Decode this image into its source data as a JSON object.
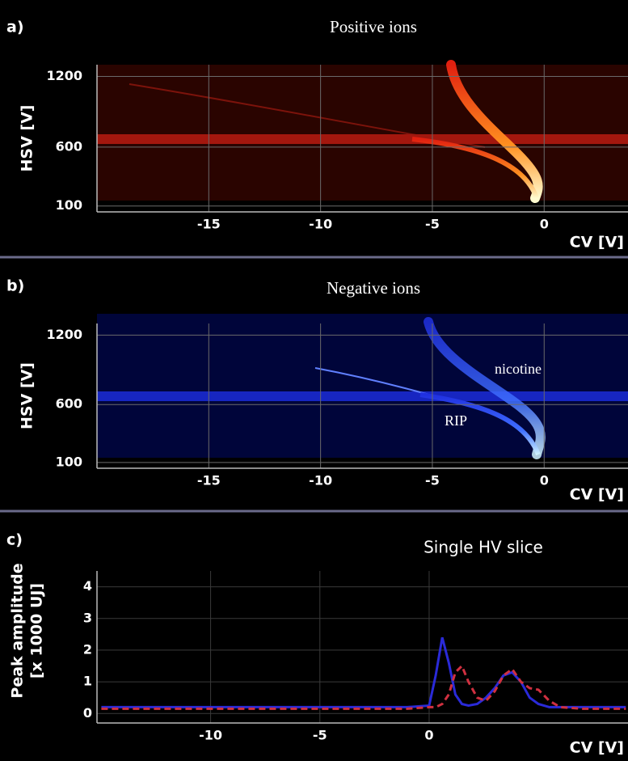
{
  "chart_data": [
    {
      "type": "heatmap",
      "panel_label": "a)",
      "title": "Positive ions",
      "ylabel": "HSV [V]",
      "xlabel": "CV [V]",
      "xlim": [
        -20,
        3.75
      ],
      "ylim": [
        50,
        1300
      ],
      "xticks": [
        -15,
        -10,
        -5,
        0
      ],
      "yticks": [
        100,
        600,
        1200
      ],
      "grid": true
    },
    {
      "type": "heatmap",
      "panel_label": "b)",
      "title": "Negative ions",
      "ylabel": "HSV [V]",
      "xlabel": "CV [V]",
      "xlim": [
        -20,
        3.75
      ],
      "ylim": [
        50,
        1300
      ],
      "xticks": [
        -15,
        -10,
        -5,
        0
      ],
      "yticks": [
        100,
        600,
        1200
      ],
      "grid": true,
      "annotations": [
        "nicotine",
        "RIP"
      ]
    },
    {
      "type": "line",
      "panel_label": "c)",
      "title": "Single HV slice",
      "ylabel_lines": [
        "Peak amplitude",
        "[x 1000 UJ]"
      ],
      "xlabel": "CV [V]",
      "xlim": [
        -15.2,
        9.1
      ],
      "ylim": [
        -0.3,
        4.5
      ],
      "xticks": [
        -10,
        -5,
        0
      ],
      "yticks": [
        0,
        1,
        2,
        3,
        4
      ],
      "grid": true,
      "x": [
        -15,
        -10,
        -5,
        -1,
        0,
        0.3,
        0.6,
        0.9,
        1.2,
        1.5,
        1.8,
        2.2,
        2.6,
        3.0,
        3.4,
        3.8,
        4.2,
        4.6,
        5.0,
        5.5,
        6,
        7,
        8,
        9
      ],
      "series": [
        {
          "color": "#2a2ad8",
          "dashed": false,
          "values": [
            0.2,
            0.2,
            0.2,
            0.2,
            0.25,
            1.2,
            2.4,
            1.6,
            0.6,
            0.3,
            0.25,
            0.3,
            0.5,
            0.8,
            1.2,
            1.3,
            1.0,
            0.5,
            0.3,
            0.2,
            0.2,
            0.2,
            0.2,
            0.2
          ]
        },
        {
          "color": "#d03040",
          "dashed": true,
          "values": [
            0.15,
            0.15,
            0.15,
            0.15,
            0.2,
            0.2,
            0.3,
            0.6,
            1.3,
            1.5,
            1.0,
            0.5,
            0.4,
            0.7,
            1.2,
            1.4,
            1.0,
            0.8,
            0.75,
            0.4,
            0.2,
            0.15,
            0.15,
            0.15
          ]
        }
      ]
    }
  ]
}
